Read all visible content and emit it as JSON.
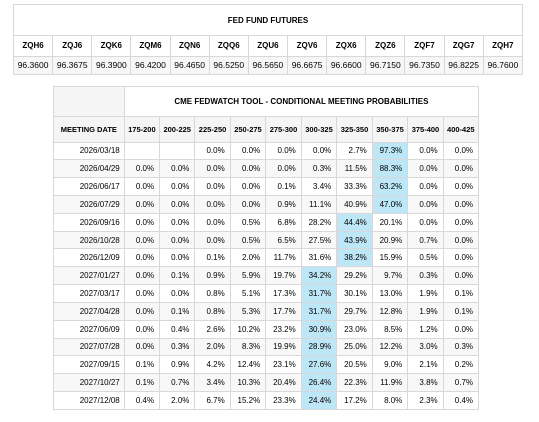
{
  "futures": {
    "title": "FED FUND FUTURES",
    "headers": [
      "ZQH6",
      "ZQJ6",
      "ZQK6",
      "ZQM6",
      "ZQN6",
      "ZQQ6",
      "ZQU6",
      "ZQV6",
      "ZQX6",
      "ZQZ6",
      "ZQF7",
      "ZQG7",
      "ZQH7"
    ],
    "values": [
      "96.3600",
      "96.3675",
      "96.3900",
      "96.4200",
      "96.4650",
      "96.5250",
      "96.5650",
      "96.6675",
      "96.6600",
      "96.7150",
      "96.7350",
      "96.8225",
      "96.7600"
    ]
  },
  "fedwatch": {
    "title": "CME FEDWATCH TOOL - CONDITIONAL MEETING PROBABILITIES",
    "date_header": "MEETING DATE",
    "columns": [
      "175-200",
      "200-225",
      "225-250",
      "250-275",
      "275-300",
      "300-325",
      "325-350",
      "350-375",
      "375-400",
      "400-425"
    ],
    "highlight_color": "#bde6f6",
    "rows": [
      {
        "date": "2026/03/18",
        "values": [
          "",
          "",
          "0.0%",
          "0.0%",
          "0.0%",
          "0.0%",
          "2.7%",
          "97.3%",
          "0.0%",
          "0.0%"
        ]
      },
      {
        "date": "2026/04/29",
        "values": [
          "0.0%",
          "0.0%",
          "0.0%",
          "0.0%",
          "0.0%",
          "0.3%",
          "11.5%",
          "88.3%",
          "0.0%",
          "0.0%"
        ]
      },
      {
        "date": "2026/06/17",
        "values": [
          "0.0%",
          "0.0%",
          "0.0%",
          "0.0%",
          "0.1%",
          "3.4%",
          "33.3%",
          "63.2%",
          "0.0%",
          "0.0%"
        ]
      },
      {
        "date": "2026/07/29",
        "values": [
          "0.0%",
          "0.0%",
          "0.0%",
          "0.0%",
          "0.9%",
          "11.1%",
          "40.9%",
          "47.0%",
          "0.0%",
          "0.0%"
        ]
      },
      {
        "date": "2026/09/16",
        "values": [
          "0.0%",
          "0.0%",
          "0.0%",
          "0.5%",
          "6.8%",
          "28.2%",
          "44.4%",
          "20.1%",
          "0.0%",
          "0.0%"
        ]
      },
      {
        "date": "2026/10/28",
        "values": [
          "0.0%",
          "0.0%",
          "0.0%",
          "0.5%",
          "6.5%",
          "27.5%",
          "43.9%",
          "20.9%",
          "0.7%",
          "0.0%"
        ]
      },
      {
        "date": "2026/12/09",
        "values": [
          "0.0%",
          "0.0%",
          "0.1%",
          "2.0%",
          "11.7%",
          "31.6%",
          "38.2%",
          "15.9%",
          "0.5%",
          "0.0%"
        ]
      },
      {
        "date": "2027/01/27",
        "values": [
          "0.0%",
          "0.1%",
          "0.9%",
          "5.9%",
          "19.7%",
          "34.2%",
          "29.2%",
          "9.7%",
          "0.3%",
          "0.0%"
        ]
      },
      {
        "date": "2027/03/17",
        "values": [
          "0.0%",
          "0.0%",
          "0.8%",
          "5.1%",
          "17.3%",
          "31.7%",
          "30.1%",
          "13.0%",
          "1.9%",
          "0.1%"
        ]
      },
      {
        "date": "2027/04/28",
        "values": [
          "0.0%",
          "0.1%",
          "0.8%",
          "5.3%",
          "17.7%",
          "31.7%",
          "29.7%",
          "12.8%",
          "1.9%",
          "0.1%"
        ]
      },
      {
        "date": "2027/06/09",
        "values": [
          "0.0%",
          "0.4%",
          "2.6%",
          "10.2%",
          "23.2%",
          "30.9%",
          "23.0%",
          "8.5%",
          "1.2%",
          "0.0%"
        ]
      },
      {
        "date": "2027/07/28",
        "values": [
          "0.0%",
          "0.3%",
          "2.0%",
          "8.3%",
          "19.9%",
          "28.9%",
          "25.0%",
          "12.2%",
          "3.0%",
          "0.3%"
        ]
      },
      {
        "date": "2027/09/15",
        "values": [
          "0.1%",
          "0.9%",
          "4.2%",
          "12.4%",
          "23.1%",
          "27.6%",
          "20.5%",
          "9.0%",
          "2.1%",
          "0.2%"
        ]
      },
      {
        "date": "2027/10/27",
        "values": [
          "0.1%",
          "0.7%",
          "3.4%",
          "10.3%",
          "20.4%",
          "26.4%",
          "22.3%",
          "11.9%",
          "3.8%",
          "0.7%"
        ]
      },
      {
        "date": "2027/12/08",
        "values": [
          "0.4%",
          "2.0%",
          "6.7%",
          "15.2%",
          "23.3%",
          "24.4%",
          "17.2%",
          "8.0%",
          "2.3%",
          "0.4%"
        ]
      }
    ],
    "highlighted_cells": [
      [
        0,
        7
      ],
      [
        1,
        7
      ],
      [
        2,
        7
      ],
      [
        3,
        7
      ],
      [
        4,
        6
      ],
      [
        5,
        6
      ],
      [
        6,
        6
      ],
      [
        7,
        5
      ],
      [
        8,
        5
      ],
      [
        9,
        5
      ],
      [
        10,
        5
      ],
      [
        11,
        5
      ],
      [
        12,
        5
      ],
      [
        13,
        5
      ],
      [
        14,
        5
      ]
    ]
  }
}
